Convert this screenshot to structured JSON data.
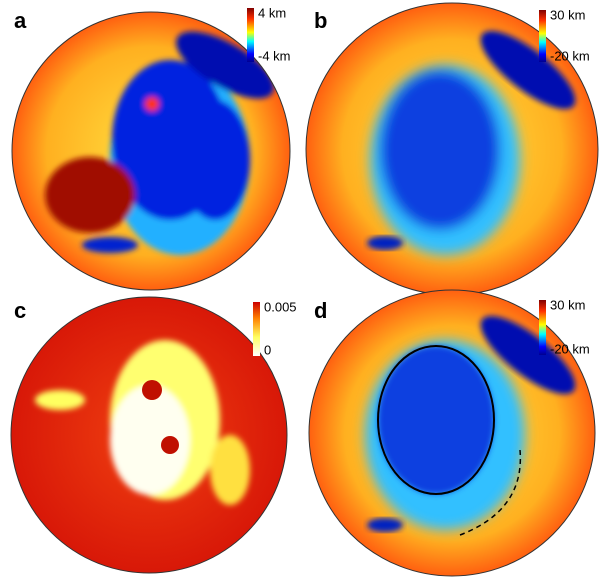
{
  "panels": [
    {
      "label": "a",
      "colorbar": {
        "max": "4 km",
        "min": "-4 km"
      }
    },
    {
      "label": "b",
      "colorbar": {
        "max": "30 km",
        "min": "-20 km"
      }
    },
    {
      "label": "c",
      "colorbar": {
        "max": "0.005",
        "min": "0"
      }
    },
    {
      "label": "d",
      "colorbar": {
        "max": "30 km",
        "min": "-20 km"
      }
    }
  ]
}
